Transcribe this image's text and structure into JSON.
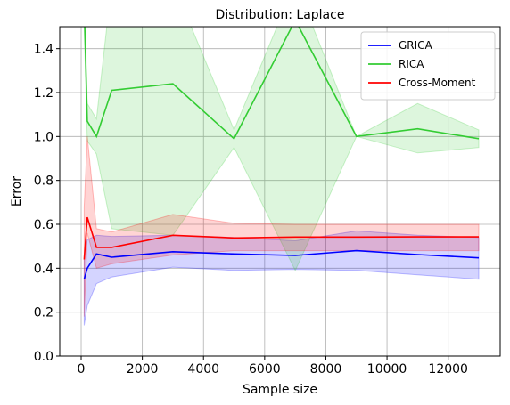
{
  "chart_data": {
    "type": "line",
    "title": "Distribution: Laplace",
    "xlabel": "Sample size",
    "ylabel": "Error",
    "xlim": [
      -700,
      13700
    ],
    "ylim": [
      0,
      1.5
    ],
    "xticks": [
      0,
      2000,
      4000,
      6000,
      8000,
      10000,
      12000
    ],
    "yticks": [
      0.0,
      0.2,
      0.4,
      0.6,
      0.8,
      1.0,
      1.2,
      1.4
    ],
    "grid": true,
    "legend_position": "top-right",
    "series": [
      {
        "name": "GRICA",
        "color": "#0000ff",
        "x": [
          100,
          200,
          500,
          1000,
          3000,
          5000,
          7000,
          9000,
          11000,
          13000
        ],
        "y": [
          0.35,
          0.4,
          0.465,
          0.45,
          0.475,
          0.465,
          0.458,
          0.48,
          0.462,
          0.447
        ],
        "lower": [
          0.14,
          0.23,
          0.33,
          0.36,
          0.405,
          0.39,
          0.395,
          0.39,
          0.37,
          0.35
        ],
        "upper": [
          0.46,
          0.53,
          0.55,
          0.545,
          0.55,
          0.54,
          0.525,
          0.57,
          0.55,
          0.54
        ]
      },
      {
        "name": "RICA",
        "color": "#33cc33",
        "x": [
          100,
          200,
          500,
          1000,
          3000,
          5000,
          7000,
          9000,
          11000,
          13000
        ],
        "y": [
          1.6,
          1.07,
          1.0,
          1.21,
          1.24,
          0.99,
          1.53,
          1.0,
          1.035,
          0.99
        ],
        "lower": [
          1.5,
          0.98,
          0.92,
          0.58,
          0.55,
          0.95,
          0.39,
          1.0,
          0.925,
          0.95
        ],
        "upper": [
          1.7,
          1.15,
          1.08,
          1.7,
          1.7,
          1.03,
          1.7,
          1.0,
          1.15,
          1.03
        ]
      },
      {
        "name": "Cross-Moment",
        "color": "#ff0000",
        "x": [
          100,
          200,
          500,
          1000,
          3000,
          5000,
          7000,
          9000,
          11000,
          13000
        ],
        "y": [
          0.44,
          0.632,
          0.495,
          0.495,
          0.55,
          0.538,
          0.542,
          0.542,
          0.543,
          0.543
        ],
        "lower": [
          0.18,
          0.56,
          0.4,
          0.42,
          0.46,
          0.48,
          0.48,
          0.48,
          0.48,
          0.48
        ],
        "upper": [
          0.68,
          1.0,
          0.58,
          0.565,
          0.645,
          0.605,
          0.6,
          0.6,
          0.6,
          0.6
        ]
      }
    ]
  }
}
